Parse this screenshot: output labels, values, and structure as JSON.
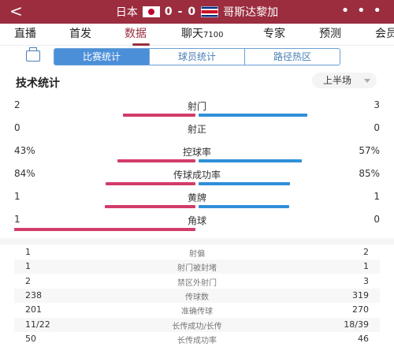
{
  "header": {
    "back_glyph": "<",
    "home_team": "日本",
    "away_team": "哥斯达黎加",
    "home_score": "0",
    "sep": "-",
    "away_score": "0",
    "more_glyph": "• • •",
    "home_flag": "japan-flag",
    "away_flag": "costa-rica-flag"
  },
  "tabs": [
    {
      "label": "直播"
    },
    {
      "label": "首发"
    },
    {
      "label": "数据",
      "active": true
    },
    {
      "label": "聊天",
      "sub": "7100"
    },
    {
      "label": "专家"
    },
    {
      "label": "预测"
    },
    {
      "label": "会员"
    }
  ],
  "segments": [
    {
      "label": "比赛统计",
      "active": true
    },
    {
      "label": "球员统计"
    },
    {
      "label": "路径热区"
    }
  ],
  "section": {
    "title": "技术统计",
    "period": "上半场"
  },
  "colors": {
    "home": "#d23c6a",
    "away": "#2f8fd8",
    "brand": "#9b2d3f"
  },
  "stats": [
    {
      "label": "射门",
      "left": "2",
      "right": "3",
      "lval": 2,
      "rval": 3
    },
    {
      "label": "射正",
      "left": "0",
      "right": "0",
      "lval": 0,
      "rval": 0
    },
    {
      "label": "控球率",
      "left": "43%",
      "right": "57%",
      "lval": 43,
      "rval": 57
    },
    {
      "label": "传球成功率",
      "left": "84%",
      "right": "85%",
      "lval": 84,
      "rval": 85
    },
    {
      "label": "黄牌",
      "left": "1",
      "right": "1",
      "lval": 1,
      "rval": 1
    },
    {
      "label": "角球",
      "left": "1",
      "right": "0",
      "lval": 1,
      "rval": 0
    }
  ],
  "details": [
    {
      "label": "射偏",
      "left": "1",
      "right": "2"
    },
    {
      "label": "射门被封堵",
      "left": "1",
      "right": "1"
    },
    {
      "label": "禁区外射门",
      "left": "2",
      "right": "3"
    },
    {
      "label": "传球数",
      "left": "238",
      "right": "319"
    },
    {
      "label": "准确传球",
      "left": "201",
      "right": "270"
    },
    {
      "label": "长传成功/长传",
      "left": "11/22",
      "right": "18/39"
    },
    {
      "label": "长传成功率",
      "left": "50",
      "right": "46"
    }
  ]
}
